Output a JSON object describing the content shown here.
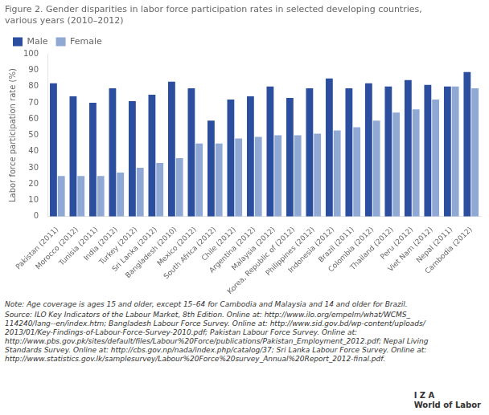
{
  "chart_data": {
    "type": "bar",
    "title": "Figure 2. Gender disparities in labor force participation rates in selected developing countries,\nvarious years (2010–2012)",
    "ylabel": "Labor force participation rate (%)",
    "annotations": [
      "Note: Age coverage is ages 15 and older, except 15–64 for Cambodia and Malaysia and 14 and older for Brazil.",
      "Source: ILO Key Indicators of the Labour Market, 8th Edition. Online at: http://www.ilo.org/empelm/what/WCMS_\n114240/lang--en/index.htm; Bangladesh Labour Force Survey. Online at: http://www.sid.gov.bd/wp-content/uploads/\n2013/01/Key-Findings-of-Labour-Force-Survey-2010.pdf; Pakistan Labour Force Survey. Online at:\nhttp://www.pbs.gov.pk/sites/default/files/Labour%20Force/publications/Pakistan_Employment_2012.pdf; Nepal Living\nStandards Survey. Online at: http://cbs.gov.np/nada/index.php/catalog/37; Sri Lanka Labour Force Survey. Online at:\nhttp://www.statistics.gov.lk/samplesurvey/Labour%20Force%20survey_Annual%20Report_2012-final.pdf.",
      "I Z A\nWorld of Labor"
    ],
    "categories": [
      "Pakistan (2011)",
      "Morocco (2012)",
      "Tunisia (2011)",
      "India (2012)",
      "Turkey (2012)",
      "Sri Lanka (2012)",
      "Bangladesh (2010)",
      "Mexico (2012)",
      "South Africa (2012)",
      "Chile (2012)",
      "Argentina (2012)",
      "Malaysia (2012)",
      "Korea, Republic of (2012)",
      "Philippines (2012)",
      "Indonesia (2012)",
      "Brazil (2011)",
      "Colombia (2012)",
      "Thailand (2012)",
      "Peru (2012)",
      "Viet Nam (2012)",
      "Nepal (2011)",
      "Cambodia (2012)"
    ],
    "series": [
      {
        "name": "Male",
        "color": "#2B4F9E",
        "values": [
          82,
          74,
          70,
          79,
          71,
          75,
          83,
          79,
          59,
          72,
          74,
          80,
          73,
          79,
          85,
          79,
          82,
          80,
          84,
          81,
          80,
          89
        ]
      },
      {
        "name": "Female",
        "color": "#8FA8D4",
        "values": [
          25,
          25,
          25,
          27,
          30,
          33,
          36,
          45,
          45,
          48,
          49,
          50,
          50,
          51,
          53,
          55,
          59,
          64,
          66,
          72,
          80,
          79
        ]
      }
    ],
    "ylim": [
      0,
      100
    ],
    "yticks": [
      0,
      10,
      20,
      30,
      40,
      50,
      60,
      70,
      80,
      90,
      100
    ],
    "grid": false,
    "legend": "upper left"
  }
}
